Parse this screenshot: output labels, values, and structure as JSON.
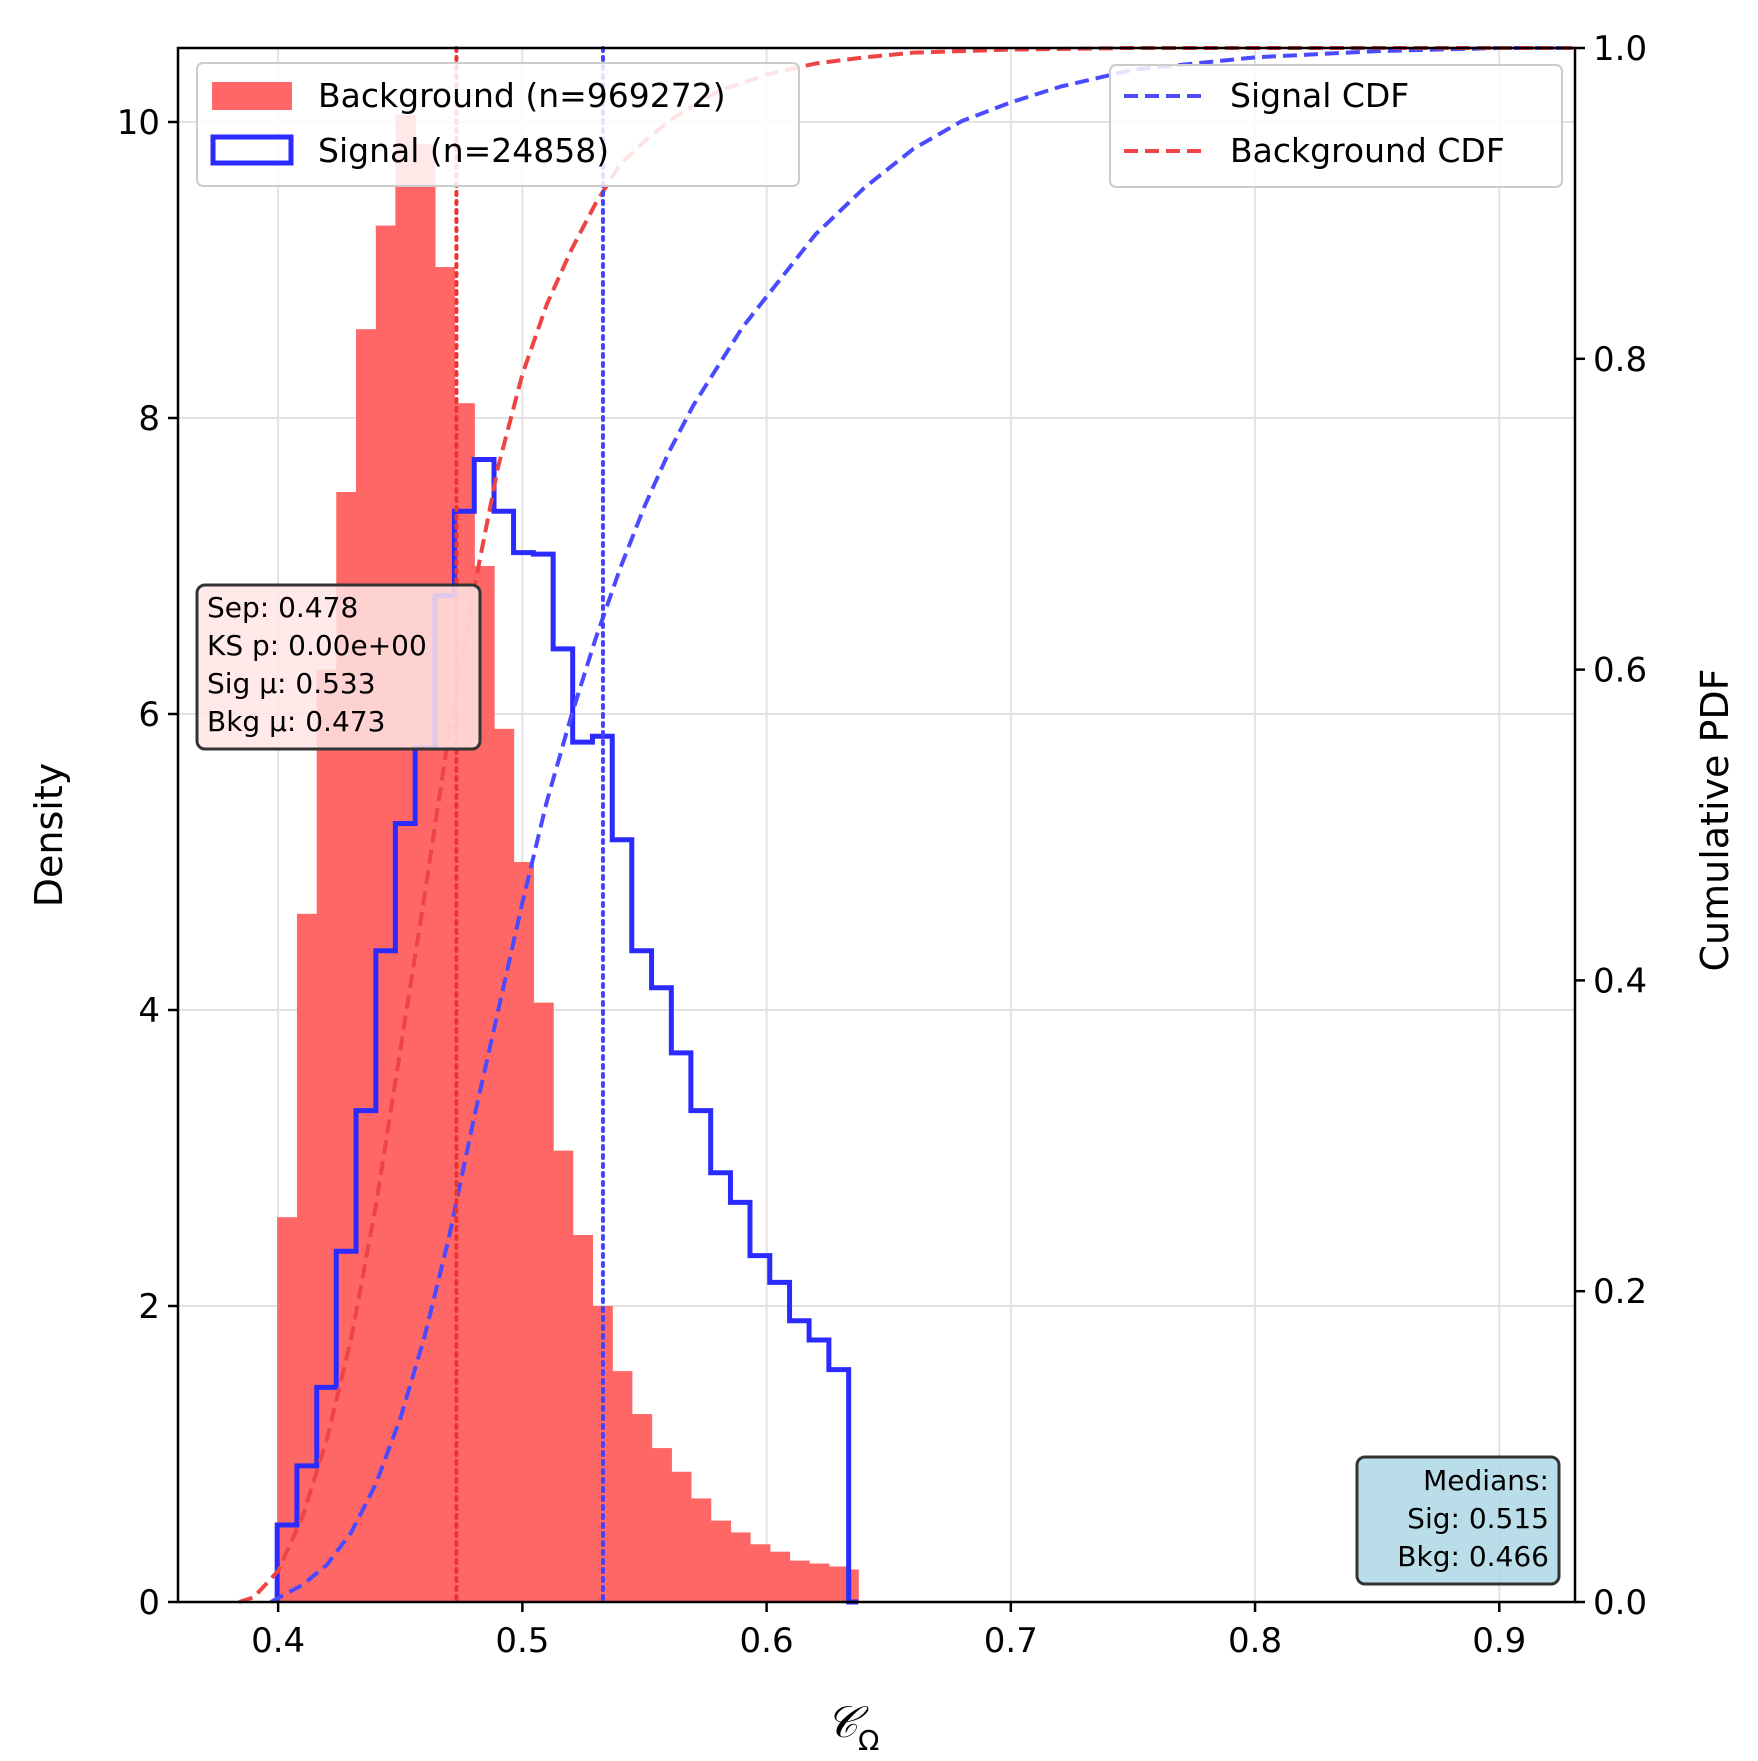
{
  "chart_data": {
    "type": "histogram",
    "xlabel": "𝒞Ω",
    "xlabel_main": "𝒞",
    "xlabel_sub": "Ω",
    "ylabel": "Density",
    "y2label": "Cumulative PDF",
    "xlim": [
      0.359,
      0.931
    ],
    "ylim": [
      0,
      10.5
    ],
    "y2lim": [
      0,
      1.0
    ],
    "grid": true,
    "x_ticks": [
      "0.4",
      "0.5",
      "0.6",
      "0.7",
      "0.8",
      "0.9"
    ],
    "x_tick_values": [
      0.4,
      0.5,
      0.6,
      0.7,
      0.8,
      0.9
    ],
    "y_ticks": [
      "0",
      "2",
      "4",
      "6",
      "8",
      "10"
    ],
    "y_tick_values": [
      0,
      2,
      4,
      6,
      8,
      10
    ],
    "y2_ticks": [
      "0.0",
      "0.2",
      "0.4",
      "0.6",
      "0.8",
      "1.0"
    ],
    "y2_tick_values": [
      0,
      0.2,
      0.4,
      0.6,
      0.8,
      1.0
    ],
    "bin_edges": [
      0.3996,
      0.4077,
      0.4158,
      0.4238,
      0.4319,
      0.44,
      0.448,
      0.4561,
      0.4642,
      0.4722,
      0.4803,
      0.4884,
      0.4964,
      0.5045,
      0.5126,
      0.5206,
      0.5287,
      0.5368,
      0.5448,
      0.5529,
      0.561,
      0.569,
      0.5771,
      0.5852,
      0.5932,
      0.6013,
      0.6094,
      0.6174,
      0.6255,
      0.6336,
      0.6375
    ],
    "series": [
      {
        "name": "Background (n=969272)",
        "style": "filled-bar",
        "color": "#ff6666",
        "values": [
          2.6,
          4.65,
          6.3,
          7.5,
          8.6,
          9.3,
          10.05,
          9.85,
          9.02,
          8.1,
          7.0,
          5.9,
          5.0,
          4.05,
          3.05,
          2.48,
          2.0,
          1.56,
          1.27,
          1.04,
          0.88,
          0.7,
          0.55,
          0.47,
          0.39,
          0.34,
          0.28,
          0.26,
          0.24,
          0.22
        ]
      },
      {
        "name": "Signal (n=24858)",
        "style": "step-outline",
        "color": "#2b2bff",
        "values": [
          0.52,
          0.92,
          1.45,
          2.37,
          3.32,
          4.4,
          5.26,
          5.77,
          6.8,
          7.37,
          7.72,
          7.37,
          7.09,
          7.08,
          6.44,
          5.81,
          5.85,
          5.15,
          4.4,
          4.15,
          3.71,
          3.32,
          2.9,
          2.7,
          2.34,
          2.16,
          1.9,
          1.77,
          1.57,
          0
        ]
      },
      {
        "name": "Signal CDF",
        "style": "dashed-line",
        "axis": "right",
        "color": "#4a4aff",
        "x": [
          0.397,
          0.41,
          0.42,
          0.43,
          0.44,
          0.45,
          0.46,
          0.47,
          0.48,
          0.49,
          0.5,
          0.51,
          0.52,
          0.53,
          0.54,
          0.55,
          0.56,
          0.57,
          0.58,
          0.59,
          0.6,
          0.62,
          0.64,
          0.66,
          0.68,
          0.7,
          0.72,
          0.75,
          0.8,
          0.85,
          0.9,
          0.93
        ],
        "y": [
          0.0,
          0.011,
          0.024,
          0.045,
          0.076,
          0.118,
          0.171,
          0.235,
          0.31,
          0.38,
          0.45,
          0.515,
          0.57,
          0.62,
          0.665,
          0.705,
          0.74,
          0.77,
          0.795,
          0.82,
          0.84,
          0.88,
          0.91,
          0.935,
          0.953,
          0.965,
          0.975,
          0.986,
          0.994,
          0.998,
          1.0,
          1.0
        ]
      },
      {
        "name": "Background CDF",
        "style": "dashed-line",
        "axis": "right",
        "color": "#ee4444",
        "x": [
          0.384,
          0.39,
          0.4,
          0.41,
          0.42,
          0.43,
          0.44,
          0.45,
          0.46,
          0.47,
          0.48,
          0.49,
          0.5,
          0.51,
          0.52,
          0.53,
          0.54,
          0.55,
          0.56,
          0.57,
          0.58,
          0.6,
          0.62,
          0.64,
          0.66,
          0.7,
          0.75,
          0.8,
          0.9,
          0.93
        ],
        "y": [
          0.0,
          0.003,
          0.02,
          0.055,
          0.105,
          0.17,
          0.255,
          0.355,
          0.455,
          0.56,
          0.65,
          0.73,
          0.79,
          0.835,
          0.87,
          0.9,
          0.925,
          0.94,
          0.953,
          0.963,
          0.972,
          0.983,
          0.99,
          0.994,
          0.997,
          0.999,
          1.0,
          1.0,
          1.0,
          1.0
        ]
      }
    ],
    "vlines": [
      {
        "name": "Background mean",
        "x": 0.473,
        "color": "#ee3333",
        "style": "dotted"
      },
      {
        "name": "Signal mean",
        "x": 0.533,
        "color": "#4444ff",
        "style": "dotted"
      }
    ],
    "legend_left": [
      {
        "label": "Background (n=969272)",
        "swatch": "filled",
        "color": "#ff6666"
      },
      {
        "label": "Signal (n=24858)",
        "swatch": "outline",
        "color": "#2b2bff"
      }
    ],
    "legend_right": [
      {
        "label": "Signal CDF",
        "color": "#4a4aff"
      },
      {
        "label": "Background CDF",
        "color": "#ee4444"
      }
    ],
    "stats_box": {
      "lines": [
        "Sep: 0.478",
        "KS p: 0.00e+00",
        "Sig μ: 0.533",
        "Bkg μ: 0.473"
      ],
      "background": "#ffe5e5"
    },
    "medians_box": {
      "lines": [
        "Medians:",
        "Sig: 0.515",
        "Bkg: 0.466"
      ],
      "background": "#add8e6"
    }
  }
}
